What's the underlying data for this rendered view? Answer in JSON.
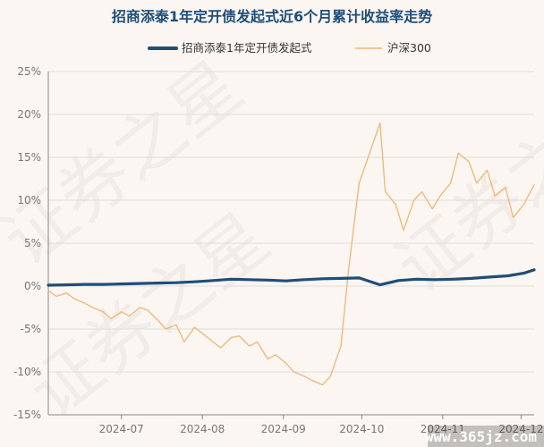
{
  "colors": {
    "background": "#fbf6f1",
    "fund": "#1f4e79",
    "index": "#f0b577",
    "grid": "#dddddd",
    "axis": "#888888"
  },
  "watermark": {
    "text": "证券之星",
    "site": "www.365jz.com"
  },
  "chart_data": {
    "type": "line",
    "title": "招商添泰1年定开债发起式近6个月累计收益率走势",
    "xlabel": "",
    "ylabel": "",
    "ylim": [
      -15,
      25
    ],
    "yticks": [
      25,
      20,
      15,
      10,
      5,
      0,
      -5,
      -10,
      -15
    ],
    "ytick_labels": [
      "25%",
      "20%",
      "15%",
      "10%",
      "5%",
      "0%",
      "-5%",
      "-10%",
      "-15%"
    ],
    "x_range": [
      "2024-06-03",
      "2024-12-06"
    ],
    "xticks": [
      "2024-07-01",
      "2024-08-01",
      "2024-09-01",
      "2024-10-01",
      "2024-11-01",
      "2024-12-01"
    ],
    "xtick_labels": [
      "2024-07",
      "2024-08",
      "2024-09",
      "2024-10",
      "2024-11",
      "2024-12"
    ],
    "grid": "horizontal",
    "legend": "top-center",
    "series": [
      {
        "name": "招商添泰1年定开债发起式",
        "x": [
          "2024-06-03",
          "2024-06-10",
          "2024-06-17",
          "2024-06-24",
          "2024-07-01",
          "2024-07-08",
          "2024-07-15",
          "2024-07-22",
          "2024-07-29",
          "2024-08-05",
          "2024-08-12",
          "2024-08-19",
          "2024-08-26",
          "2024-09-02",
          "2024-09-09",
          "2024-09-16",
          "2024-09-23",
          "2024-09-30",
          "2024-10-08",
          "2024-10-15",
          "2024-10-22",
          "2024-10-29",
          "2024-11-05",
          "2024-11-12",
          "2024-11-19",
          "2024-11-26",
          "2024-12-02",
          "2024-12-06"
        ],
        "y": [
          0.1,
          0.15,
          0.2,
          0.2,
          0.25,
          0.3,
          0.35,
          0.4,
          0.5,
          0.65,
          0.8,
          0.75,
          0.7,
          0.6,
          0.75,
          0.85,
          0.9,
          0.95,
          0.15,
          0.65,
          0.8,
          0.75,
          0.8,
          0.9,
          1.05,
          1.2,
          1.5,
          1.9
        ],
        "width": 3.2
      },
      {
        "name": "沪深300",
        "x": [
          "2024-06-03",
          "2024-06-06",
          "2024-06-10",
          "2024-06-13",
          "2024-06-17",
          "2024-06-20",
          "2024-06-24",
          "2024-06-27",
          "2024-07-01",
          "2024-07-04",
          "2024-07-08",
          "2024-07-11",
          "2024-07-15",
          "2024-07-18",
          "2024-07-22",
          "2024-07-25",
          "2024-07-29",
          "2024-08-01",
          "2024-08-05",
          "2024-08-08",
          "2024-08-12",
          "2024-08-15",
          "2024-08-19",
          "2024-08-22",
          "2024-08-26",
          "2024-08-29",
          "2024-09-02",
          "2024-09-05",
          "2024-09-09",
          "2024-09-12",
          "2024-09-16",
          "2024-09-19",
          "2024-09-23",
          "2024-09-26",
          "2024-09-30",
          "2024-10-08",
          "2024-10-10",
          "2024-10-14",
          "2024-10-17",
          "2024-10-21",
          "2024-10-24",
          "2024-10-28",
          "2024-10-31",
          "2024-11-04",
          "2024-11-07",
          "2024-11-11",
          "2024-11-14",
          "2024-11-18",
          "2024-11-21",
          "2024-11-25",
          "2024-11-28",
          "2024-12-02",
          "2024-12-06"
        ],
        "y": [
          -0.5,
          -1.2,
          -0.8,
          -1.5,
          -2.0,
          -2.5,
          -3.0,
          -3.8,
          -3.0,
          -3.5,
          -2.5,
          -2.8,
          -4.0,
          -5.0,
          -4.5,
          -6.5,
          -4.8,
          -5.5,
          -6.5,
          -7.2,
          -6.0,
          -5.8,
          -7.0,
          -6.5,
          -8.5,
          -8.0,
          -9.0,
          -10.0,
          -10.5,
          -11.0,
          -11.5,
          -10.5,
          -7.0,
          2.0,
          12.0,
          19.0,
          11.0,
          9.5,
          6.5,
          10.0,
          11.0,
          9.0,
          10.5,
          12.0,
          15.5,
          14.5,
          12.0,
          13.5,
          10.5,
          11.5,
          8.0,
          9.5,
          11.8
        ],
        "width": 1.3
      }
    ]
  }
}
